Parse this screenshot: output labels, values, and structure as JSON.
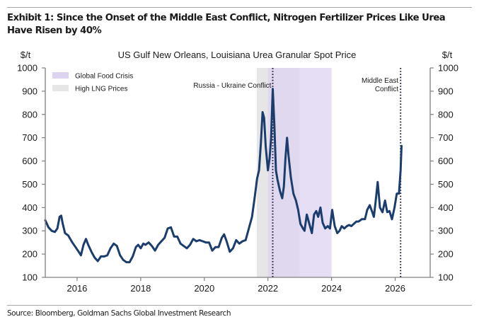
{
  "header": {
    "title": "Exhibit 1: Since the Onset of the Middle East Conflict, Nitrogen Fertilizer Prices Like Urea Have Risen by 40%"
  },
  "footer": {
    "source": "Source: Bloomberg, Goldman Sachs Global Investment Research"
  },
  "chart_data": {
    "type": "line",
    "title": "US Gulf New Orleans, Louisiana Urea Granular Spot Price",
    "ylabel_left": "$/t",
    "ylabel_right": "$/t",
    "xlabel": "",
    "xlim": [
      2015.0,
      2027.1
    ],
    "ylim": [
      100,
      1000
    ],
    "yticks": [
      100,
      200,
      300,
      400,
      500,
      600,
      700,
      800,
      900,
      1000
    ],
    "ytick_labels": [
      "100",
      "200",
      "300",
      "400",
      "500",
      "600",
      "700",
      "800",
      "900",
      "1000"
    ],
    "xticks": [
      2016,
      2018,
      2020,
      2022,
      2024,
      2026
    ],
    "xtick_labels": [
      "2016",
      "2018",
      "2020",
      "2022",
      "2024",
      "2026"
    ],
    "grid": false,
    "legend": {
      "placement": "top-left",
      "entries": [
        {
          "label": "Global Food Crisis",
          "color": "#dcd3f0"
        },
        {
          "label": "High LNG Prices",
          "color": "#e6e6e6"
        }
      ]
    },
    "shaded_regions": [
      {
        "name": "High LNG Prices",
        "x": [
          2021.65,
          2023.0
        ],
        "color": "#e6e6e6"
      },
      {
        "name": "Global Food Crisis",
        "x": [
          2022.0,
          2024.0
        ],
        "color": "#dcd3f0"
      }
    ],
    "annotations": [
      {
        "label": "Russia - Ukraine Conflict",
        "x": 2022.15,
        "style": "dotted-vertical"
      },
      {
        "label": "Middle East Conflict",
        "x": 2026.17,
        "style": "dotted-vertical"
      }
    ],
    "series": [
      {
        "name": "US Gulf NOLA Urea Granular Spot Price",
        "color": "#1b3d6d",
        "x": [
          2015.0,
          2015.1,
          2015.2,
          2015.3,
          2015.38,
          2015.45,
          2015.5,
          2015.55,
          2015.62,
          2015.72,
          2015.85,
          2015.95,
          2016.05,
          2016.12,
          2016.2,
          2016.28,
          2016.35,
          2016.45,
          2016.55,
          2016.65,
          2016.75,
          2016.85,
          2016.95,
          2017.05,
          2017.15,
          2017.25,
          2017.35,
          2017.45,
          2017.55,
          2017.65,
          2017.75,
          2017.85,
          2017.92,
          2018.0,
          2018.08,
          2018.15,
          2018.25,
          2018.35,
          2018.45,
          2018.55,
          2018.65,
          2018.75,
          2018.85,
          2018.95,
          2019.05,
          2019.15,
          2019.25,
          2019.35,
          2019.45,
          2019.55,
          2019.65,
          2019.75,
          2019.85,
          2019.95,
          2020.05,
          2020.15,
          2020.25,
          2020.35,
          2020.45,
          2020.55,
          2020.62,
          2020.7,
          2020.8,
          2020.9,
          2021.0,
          2021.1,
          2021.2,
          2021.3,
          2021.4,
          2021.5,
          2021.58,
          2021.66,
          2021.72,
          2021.78,
          2021.83,
          2021.88,
          2021.93,
          2022.0,
          2022.05,
          2022.1,
          2022.15,
          2022.2,
          2022.25,
          2022.3,
          2022.38,
          2022.45,
          2022.5,
          2022.55,
          2022.6,
          2022.65,
          2022.72,
          2022.8,
          2022.88,
          2022.95,
          2023.02,
          2023.1,
          2023.15,
          2023.22,
          2023.3,
          2023.38,
          2023.45,
          2023.52,
          2023.58,
          2023.65,
          2023.72,
          2023.8,
          2023.88,
          2023.95,
          2024.02,
          2024.1,
          2024.18,
          2024.25,
          2024.32,
          2024.4,
          2024.48,
          2024.55,
          2024.62,
          2024.7,
          2024.78,
          2024.85,
          2024.95,
          2025.05,
          2025.12,
          2025.2,
          2025.28,
          2025.33,
          2025.38,
          2025.45,
          2025.52,
          2025.6,
          2025.68,
          2025.75,
          2025.82,
          2025.9,
          2025.98,
          2026.05,
          2026.12,
          2026.17,
          2026.2
        ],
        "values": [
          345,
          315,
          300,
          295,
          310,
          360,
          365,
          330,
          290,
          280,
          250,
          230,
          210,
          195,
          240,
          265,
          240,
          210,
          185,
          170,
          190,
          190,
          195,
          225,
          245,
          235,
          195,
          175,
          165,
          165,
          190,
          230,
          240,
          225,
          245,
          240,
          250,
          235,
          215,
          240,
          255,
          270,
          310,
          315,
          275,
          275,
          245,
          235,
          225,
          240,
          265,
          255,
          260,
          255,
          250,
          250,
          215,
          230,
          230,
          270,
          285,
          255,
          210,
          225,
          260,
          245,
          255,
          260,
          310,
          360,
          440,
          525,
          560,
          680,
          810,
          785,
          660,
          560,
          610,
          700,
          910,
          760,
          560,
          520,
          470,
          440,
          490,
          610,
          700,
          620,
          530,
          460,
          430,
          390,
          330,
          310,
          300,
          370,
          330,
          290,
          370,
          385,
          360,
          400,
          335,
          310,
          320,
          310,
          390,
          320,
          290,
          300,
          320,
          310,
          320,
          325,
          320,
          330,
          340,
          340,
          350,
          350,
          390,
          410,
          380,
          360,
          420,
          510,
          400,
          380,
          430,
          380,
          385,
          350,
          400,
          460,
          460,
          560,
          665
        ]
      }
    ]
  }
}
